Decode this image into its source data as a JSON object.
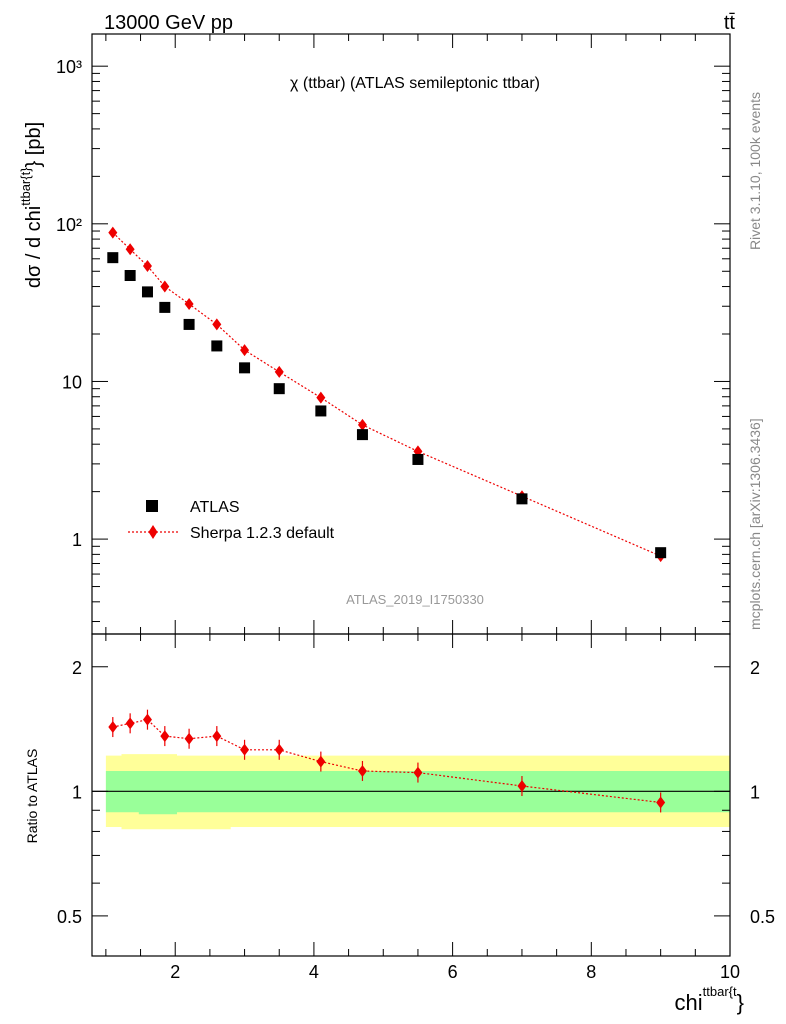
{
  "header": {
    "beam_label": "13000 GeV pp",
    "process_label": "tt̄",
    "plot_title": "χ (ttbar) (ATLAS semileptonic ttbar)",
    "analysis_id": "ATLAS_2019_I1750330",
    "side_label_top": "Rivet 3.1.10,  100k events",
    "side_label_bottom": "mcplots.cern.ch [arXiv:1306.3436]"
  },
  "main_panel": {
    "y_axis_label": "dσ / d chi^{ttbar{t}} [pb]",
    "y_tick_labels": [
      "1",
      "10",
      "10²",
      "10³"
    ]
  },
  "ratio_panel": {
    "y_axis_label": "Ratio to ATLAS",
    "y_tick_labels": [
      "0.5",
      "1",
      "2"
    ]
  },
  "x_axis": {
    "label": "chi^{ttbar{t}}",
    "tick_labels": [
      "2",
      "4",
      "6",
      "8",
      "10"
    ]
  },
  "legend": {
    "data_label": "ATLAS",
    "mc_label": "Sherpa 1.2.3 default"
  },
  "colors": {
    "data": "#000000",
    "mc": "#ee0000",
    "band_inner": "#99ff99",
    "band_outer": "#ffff99"
  },
  "chart_data": {
    "type": "scatter",
    "x_scale": "linear",
    "y_scale": "log",
    "xlim": [
      0.8,
      10
    ],
    "ylim": [
      0.25,
      1600
    ],
    "ratio_ylim": [
      0.4,
      2.4
    ],
    "x": [
      1.1,
      1.35,
      1.6,
      1.85,
      2.2,
      2.6,
      3.0,
      3.5,
      4.1,
      4.7,
      5.5,
      7.0,
      9.0
    ],
    "series": [
      {
        "name": "ATLAS",
        "marker": "square",
        "values": [
          61,
          47,
          37,
          29.5,
          23,
          16.8,
          12.2,
          9.0,
          6.5,
          4.6,
          3.2,
          1.8,
          0.82
        ]
      },
      {
        "name": "Sherpa 1.2.3 default",
        "marker": "diamond",
        "values": [
          88,
          69,
          54,
          40,
          31,
          23,
          15.8,
          11.5,
          7.9,
          5.3,
          3.6,
          1.87,
          0.78
        ]
      }
    ],
    "ratio": {
      "values": [
        1.43,
        1.46,
        1.49,
        1.36,
        1.34,
        1.36,
        1.26,
        1.26,
        1.18,
        1.12,
        1.11,
        1.03,
        0.94
      ],
      "band_inner": [
        [
          0.89,
          1.12
        ],
        [
          0.89,
          1.12
        ],
        [
          0.88,
          1.12
        ],
        [
          0.88,
          1.12
        ],
        [
          0.89,
          1.12
        ],
        [
          0.89,
          1.12
        ],
        [
          0.89,
          1.12
        ],
        [
          0.89,
          1.12
        ],
        [
          0.89,
          1.12
        ],
        [
          0.89,
          1.12
        ],
        [
          0.89,
          1.12
        ],
        [
          0.89,
          1.12
        ],
        [
          0.89,
          1.12
        ]
      ],
      "band_outer": [
        [
          0.82,
          1.22
        ],
        [
          0.81,
          1.23
        ],
        [
          0.81,
          1.23
        ],
        [
          0.81,
          1.23
        ],
        [
          0.81,
          1.22
        ],
        [
          0.81,
          1.22
        ],
        [
          0.82,
          1.22
        ],
        [
          0.82,
          1.22
        ],
        [
          0.82,
          1.22
        ],
        [
          0.82,
          1.22
        ],
        [
          0.82,
          1.22
        ],
        [
          0.82,
          1.22
        ],
        [
          0.82,
          1.22
        ]
      ]
    }
  }
}
